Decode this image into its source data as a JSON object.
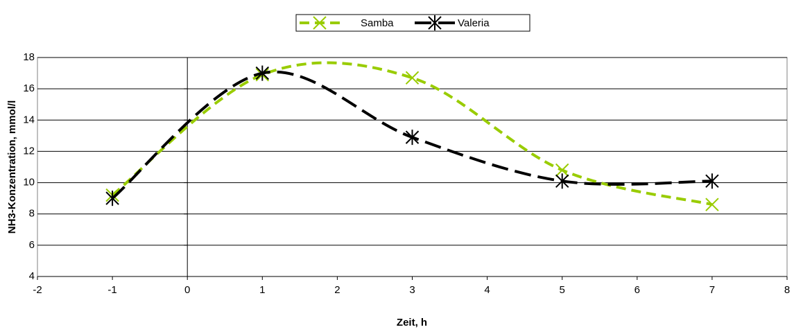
{
  "chart_data": {
    "type": "line",
    "x_label": "Zeit, h",
    "y_label": "NH3-Konzentration, mmol/l",
    "x": [
      -1,
      1,
      3,
      5,
      7
    ],
    "series": [
      {
        "name": "Samba",
        "color": "#99cc00",
        "marker": "x",
        "values": [
          9.2,
          16.9,
          16.7,
          10.8,
          8.6
        ]
      },
      {
        "name": "Valeria",
        "color": "#000000",
        "marker": "asterisk",
        "values": [
          9.0,
          17.0,
          12.9,
          10.1,
          10.1
        ]
      }
    ],
    "xlim": [
      -2,
      8
    ],
    "xticks": [
      -2,
      -1,
      0,
      1,
      2,
      3,
      4,
      5,
      6,
      7,
      8
    ],
    "ylim": [
      4,
      18
    ],
    "yticks": [
      4,
      6,
      8,
      10,
      12,
      14,
      16,
      18
    ],
    "grid": true,
    "smooth": true,
    "legend": "top"
  }
}
